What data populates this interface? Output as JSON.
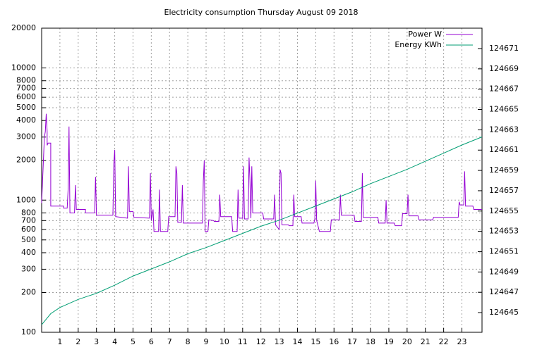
{
  "chart_data": {
    "type": "line",
    "title": "Electricity consumption Thursday August 09 2018",
    "xlim": [
      0,
      24.1
    ],
    "xticks": [
      1,
      2,
      3,
      4,
      5,
      6,
      7,
      8,
      9,
      10,
      11,
      12,
      13,
      14,
      15,
      16,
      17,
      18,
      19,
      20,
      21,
      22,
      23
    ],
    "ylim": [
      100,
      20000
    ],
    "ylog": true,
    "yticks": [
      100,
      200,
      300,
      400,
      500,
      600,
      700,
      800,
      1000,
      2000,
      3000,
      4000,
      5000,
      6000,
      7000,
      8000,
      10000,
      20000
    ],
    "y2lim": [
      124643.06,
      124673.01
    ],
    "y2ticks": [
      124645,
      124647,
      124649,
      124651,
      124653,
      124655,
      124657,
      124659,
      124661,
      124663,
      124665,
      124667,
      124669,
      124671
    ],
    "grid": true,
    "legend": "top-right",
    "series": [
      {
        "name": "Power W",
        "color": "#9400d3",
        "x": [
          0,
          0.15,
          0.2,
          0.25,
          0.3,
          0.3,
          0.35,
          0.5,
          0.5,
          1.2,
          1.2,
          1.4,
          1.45,
          1.5,
          1.55,
          1.8,
          1.85,
          1.9,
          2.4,
          2.4,
          2.9,
          2.95,
          3,
          3.9,
          3.95,
          4,
          4.05,
          4.7,
          4.75,
          4.8,
          5,
          5.05,
          5.9,
          5.95,
          6,
          6.1,
          6.15,
          6.4,
          6.45,
          6.5,
          6.9,
          6.95,
          7.3,
          7.35,
          7.4,
          7.45,
          7.65,
          7.7,
          7.75,
          8.8,
          8.85,
          8.9,
          8.95,
          9.1,
          9.15,
          9.4,
          9.45,
          9.7,
          9.75,
          9.8,
          10.4,
          10.45,
          10.7,
          10.75,
          10.8,
          11,
          11.05,
          11.1,
          11.3,
          11.35,
          11.4,
          11.45,
          11.5,
          11.55,
          12.1,
          12.15,
          12.7,
          12.75,
          12.8,
          13,
          13.05,
          13.1,
          13.15,
          13.5,
          13.55,
          13.75,
          13.8,
          13.85,
          14.2,
          14.25,
          14.9,
          14.95,
          15,
          15.05,
          15.2,
          15.8,
          15.85,
          16.3,
          16.35,
          16.4,
          17.1,
          17.15,
          17.5,
          17.55,
          17.6,
          18.4,
          18.45,
          18.8,
          18.85,
          18.9,
          19.3,
          19.35,
          19.7,
          19.75,
          20,
          20.05,
          20.1,
          20.6,
          20.65,
          21.4,
          21.45,
          22.8,
          22.85,
          22.9,
          23.1,
          23.15,
          23.2,
          23.6,
          23.65,
          24.1
        ],
        "values": [
          950,
          3000,
          3300,
          4500,
          3300,
          2600,
          2700,
          2700,
          900,
          900,
          870,
          870,
          1200,
          3600,
          800,
          800,
          1300,
          850,
          850,
          800,
          800,
          1500,
          770,
          770,
          1900,
          2400,
          750,
          730,
          1800,
          820,
          820,
          740,
          730,
          1600,
          700,
          850,
          580,
          580,
          1200,
          580,
          580,
          750,
          750,
          1800,
          1600,
          680,
          680,
          1300,
          670,
          670,
          1400,
          2000,
          580,
          580,
          710,
          700,
          690,
          690,
          1100,
          750,
          750,
          580,
          580,
          1200,
          730,
          730,
          1800,
          720,
          720,
          2100,
          1400,
          730,
          1800,
          800,
          800,
          720,
          720,
          1100,
          650,
          600,
          1700,
          1600,
          650,
          650,
          640,
          640,
          1100,
          750,
          750,
          670,
          670,
          720,
          1400,
          700,
          580,
          580,
          710,
          710,
          1100,
          770,
          770,
          690,
          690,
          1600,
          740,
          740,
          670,
          670,
          1000,
          670,
          670,
          640,
          640,
          790,
          790,
          1100,
          760,
          760,
          710,
          710,
          740,
          740,
          970,
          920,
          920,
          1650,
          900,
          900,
          850,
          850
        ]
      },
      {
        "name": "Energy KWh",
        "color": "#009e73",
        "axis": "y2",
        "x": [
          0,
          0.5,
          1,
          2,
          3,
          4,
          5,
          6,
          7,
          8,
          9,
          10,
          11,
          12,
          13,
          14,
          15,
          16,
          17,
          18,
          19,
          20,
          21,
          22,
          23,
          24.1
        ],
        "values": [
          124643.8,
          124644.9,
          124645.5,
          124646.3,
          124646.9,
          124647.7,
          124648.6,
          124649.3,
          124650.0,
          124650.8,
          124651.4,
          124652.1,
          124652.8,
          124653.5,
          124654.1,
          124654.8,
          124655.5,
          124656.2,
          124656.9,
          124657.7,
          124658.4,
          124659.1,
          124659.9,
          124660.7,
          124661.5,
          124662.3
        ]
      }
    ]
  }
}
